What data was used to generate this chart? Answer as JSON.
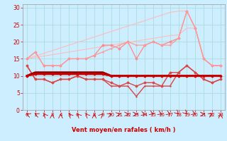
{
  "x": [
    0,
    1,
    2,
    3,
    4,
    5,
    6,
    7,
    8,
    9,
    10,
    11,
    12,
    13,
    14,
    15,
    16,
    17,
    18,
    19,
    20,
    21,
    22,
    23
  ],
  "lines": [
    {
      "name": "upper_bound1",
      "y": [
        15,
        15.8,
        16.6,
        17.4,
        18.2,
        19.0,
        19.8,
        20.6,
        21.4,
        22.2,
        23.0,
        23.8,
        24.6,
        25.4,
        26.2,
        27.0,
        27.8,
        28.6,
        29.0,
        29.0,
        24.0,
        15.0,
        13.0,
        13.0
      ],
      "color": "#ffbbbb",
      "lw": 0.8,
      "marker": null,
      "ms": 0
    },
    {
      "name": "upper_bound2",
      "y": [
        15,
        15.4,
        15.8,
        16.2,
        16.6,
        17.0,
        17.4,
        17.8,
        18.2,
        18.6,
        19.0,
        19.4,
        19.8,
        20.2,
        20.6,
        21.0,
        21.4,
        21.8,
        22.0,
        24.0,
        24.0,
        15.0,
        13.0,
        13.0
      ],
      "color": "#ffbbbb",
      "lw": 0.8,
      "marker": null,
      "ms": 0
    },
    {
      "name": "pink_zigzag1",
      "y": [
        15,
        17,
        13,
        13,
        13,
        15,
        15,
        15,
        16,
        19,
        19,
        18,
        20,
        15,
        19,
        20,
        19,
        20,
        21,
        29,
        24,
        15,
        13,
        13
      ],
      "color": "#ff8888",
      "lw": 0.9,
      "marker": "D",
      "ms": 1.5
    },
    {
      "name": "pink_zigzag2",
      "y": [
        15,
        17,
        13,
        13,
        13,
        15,
        15,
        15,
        16,
        17,
        18,
        19,
        20,
        19,
        19,
        20,
        19,
        19,
        21,
        29,
        24,
        15,
        13,
        13
      ],
      "color": "#ff9999",
      "lw": 0.9,
      "marker": "+",
      "ms": 2
    },
    {
      "name": "med_red_zigzag1",
      "y": [
        13,
        9,
        9,
        8,
        9,
        9,
        10,
        9,
        9,
        9,
        8,
        7,
        8,
        7,
        8,
        8,
        7,
        11,
        11,
        13,
        11,
        9,
        8,
        9
      ],
      "color": "#dd4444",
      "lw": 1.0,
      "marker": "D",
      "ms": 1.5
    },
    {
      "name": "med_red_zigzag2",
      "y": [
        13,
        9,
        9,
        8,
        9,
        9,
        10,
        9,
        9,
        9,
        7,
        7,
        7,
        4,
        7,
        7,
        7,
        7,
        11,
        13,
        11,
        9,
        8,
        9
      ],
      "color": "#dd4444",
      "lw": 1.0,
      "marker": "+",
      "ms": 2
    },
    {
      "name": "dark_line1",
      "y": [
        10,
        11,
        11,
        11,
        11,
        11,
        11,
        11,
        11,
        11,
        10,
        10,
        10,
        10,
        10,
        10,
        10,
        10,
        10,
        10,
        10,
        10,
        10,
        10
      ],
      "color": "#990000",
      "lw": 2.2,
      "marker": null,
      "ms": 0
    },
    {
      "name": "dark_line2",
      "y": [
        10,
        10.5,
        10.5,
        10.5,
        10.5,
        10.5,
        10.5,
        10.5,
        10.5,
        10.5,
        10,
        10,
        10,
        10,
        10,
        10,
        10,
        10,
        10,
        10,
        10,
        10,
        10,
        10
      ],
      "color": "#cc0000",
      "lw": 1.5,
      "marker": "D",
      "ms": 1.5
    },
    {
      "name": "dark_line3",
      "y": [
        10,
        10.5,
        10.5,
        10.5,
        10.5,
        10.5,
        10.5,
        10.5,
        10.5,
        10.5,
        10,
        10,
        10,
        10,
        10,
        10,
        10,
        10,
        10,
        10,
        10,
        10,
        10,
        10
      ],
      "color": "#cc0000",
      "lw": 1.5,
      "marker": "+",
      "ms": 2
    }
  ],
  "wind_angles": [
    225,
    225,
    202,
    180,
    180,
    202,
    202,
    202,
    180,
    157,
    135,
    112,
    90,
    90,
    67,
    45,
    45,
    45,
    22,
    22,
    45,
    90,
    135,
    180
  ],
  "bg_color": "#cceeff",
  "grid_color": "#aadddd",
  "xlabel": "Vent moyen/en rafales ( km/h )",
  "xlim": [
    -0.5,
    23.5
  ],
  "ylim": [
    0,
    31
  ],
  "yticks": [
    0,
    5,
    10,
    15,
    20,
    25,
    30
  ],
  "xticks": [
    0,
    1,
    2,
    3,
    4,
    5,
    6,
    7,
    8,
    9,
    10,
    11,
    12,
    13,
    14,
    15,
    16,
    17,
    18,
    19,
    20,
    21,
    22,
    23
  ]
}
